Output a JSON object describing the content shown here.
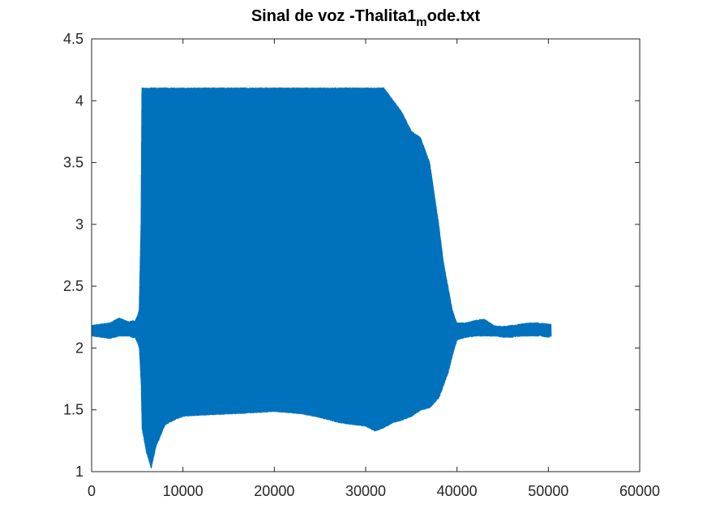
{
  "chart_data": {
    "type": "line",
    "title_main": "Sinal de voz -Thalita1",
    "title_sub": "m",
    "title_tail": "ode.txt",
    "xlim": [
      0,
      60000
    ],
    "ylim": [
      1,
      4.5
    ],
    "x_ticks": [
      0,
      10000,
      20000,
      30000,
      40000,
      50000,
      60000
    ],
    "x_tick_labels": [
      "0",
      "10000",
      "20000",
      "30000",
      "40000",
      "50000",
      "60000"
    ],
    "y_ticks": [
      1,
      1.5,
      2,
      2.5,
      3,
      3.5,
      4,
      4.5
    ],
    "y_tick_labels": [
      "1",
      "1.5",
      "2",
      "2.5",
      "3",
      "3.5",
      "4",
      "4.5"
    ],
    "grid": false,
    "series": [
      {
        "color": "#0072BD",
        "envelope": {
          "x": [
            0,
            1000,
            2000,
            3000,
            4000,
            4800,
            5200,
            5400,
            5500,
            6000,
            6500,
            7000,
            8000,
            9000,
            10000,
            12000,
            15000,
            18000,
            20000,
            23000,
            25000,
            27000,
            29000,
            30000,
            31000,
            32000,
            33000,
            34000,
            35000,
            36000,
            37000,
            38000,
            38500,
            39000,
            39500,
            40000,
            41000,
            42000,
            43000,
            44000,
            45000,
            46000,
            47000,
            48000,
            49000,
            50000,
            50300
          ],
          "upper": [
            2.18,
            2.19,
            2.2,
            2.24,
            2.21,
            2.22,
            2.3,
            3.0,
            4.1,
            4.1,
            4.1,
            4.1,
            4.1,
            4.1,
            4.1,
            4.1,
            4.1,
            4.1,
            4.1,
            4.1,
            4.1,
            4.1,
            4.1,
            4.1,
            4.1,
            4.1,
            4.0,
            3.9,
            3.75,
            3.7,
            3.5,
            3.0,
            2.7,
            2.5,
            2.3,
            2.2,
            2.2,
            2.22,
            2.23,
            2.18,
            2.17,
            2.18,
            2.19,
            2.2,
            2.2,
            2.19,
            2.19
          ],
          "lower": [
            2.1,
            2.09,
            2.08,
            2.1,
            2.1,
            2.08,
            2.0,
            1.7,
            1.35,
            1.15,
            1.03,
            1.2,
            1.38,
            1.42,
            1.45,
            1.46,
            1.47,
            1.48,
            1.49,
            1.47,
            1.44,
            1.4,
            1.38,
            1.37,
            1.33,
            1.36,
            1.4,
            1.42,
            1.45,
            1.5,
            1.52,
            1.6,
            1.7,
            1.8,
            1.95,
            2.07,
            2.09,
            2.1,
            2.1,
            2.1,
            2.09,
            2.09,
            2.1,
            2.1,
            2.1,
            2.09,
            2.1
          ]
        }
      }
    ]
  }
}
